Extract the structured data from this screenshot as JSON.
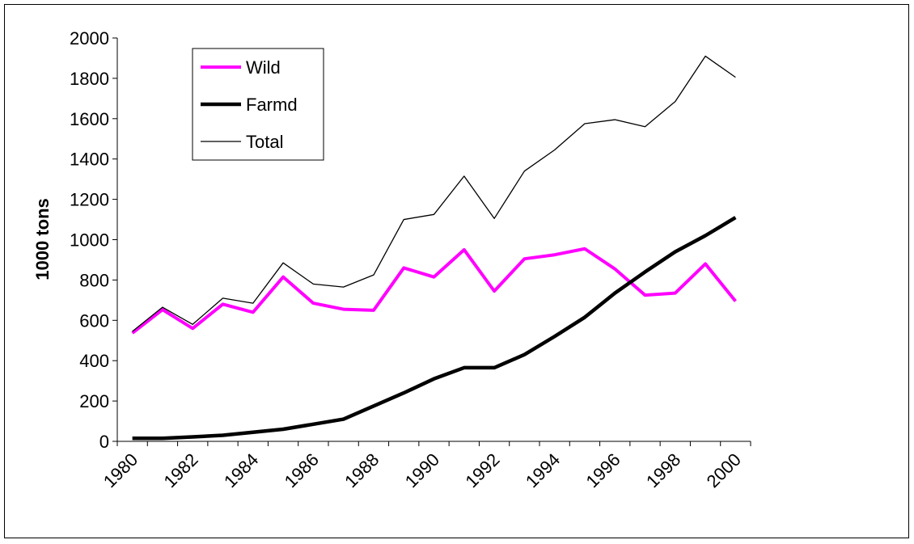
{
  "chart_data": {
    "type": "line",
    "y_label": "1000 tons",
    "categories": [
      "1980",
      null,
      "1982",
      null,
      "1984",
      null,
      "1986",
      null,
      "1988",
      null,
      "1990",
      null,
      "1992",
      null,
      "1994",
      null,
      "1996",
      null,
      "1998",
      null,
      "2000"
    ],
    "series": [
      {
        "name": "Wild",
        "color": "#ff00ff",
        "width": 4,
        "values": [
          537,
          653,
          560,
          680,
          640,
          815,
          685,
          655,
          650,
          860,
          815,
          950,
          745,
          905,
          925,
          955,
          855,
          725,
          735,
          880,
          695
        ]
      },
      {
        "name": "Farmd",
        "color": "#000000",
        "width": 4.5,
        "values": [
          15,
          15,
          22,
          30,
          45,
          60,
          85,
          110,
          175,
          240,
          310,
          365,
          365,
          430,
          520,
          615,
          735,
          840,
          940,
          1020,
          1110
        ]
      },
      {
        "name": "Total",
        "color": "#000000",
        "width": 1.3,
        "values": [
          545,
          665,
          580,
          710,
          685,
          885,
          780,
          765,
          825,
          1100,
          1125,
          1315,
          1105,
          1340,
          1445,
          1575,
          1595,
          1560,
          1685,
          1910,
          1805
        ]
      }
    ],
    "ylim": [
      0,
      2000
    ],
    "yticks": [
      0,
      200,
      400,
      600,
      800,
      1000,
      1200,
      1400,
      1600,
      1800,
      2000
    ],
    "grid": false,
    "legend": "top-left"
  }
}
